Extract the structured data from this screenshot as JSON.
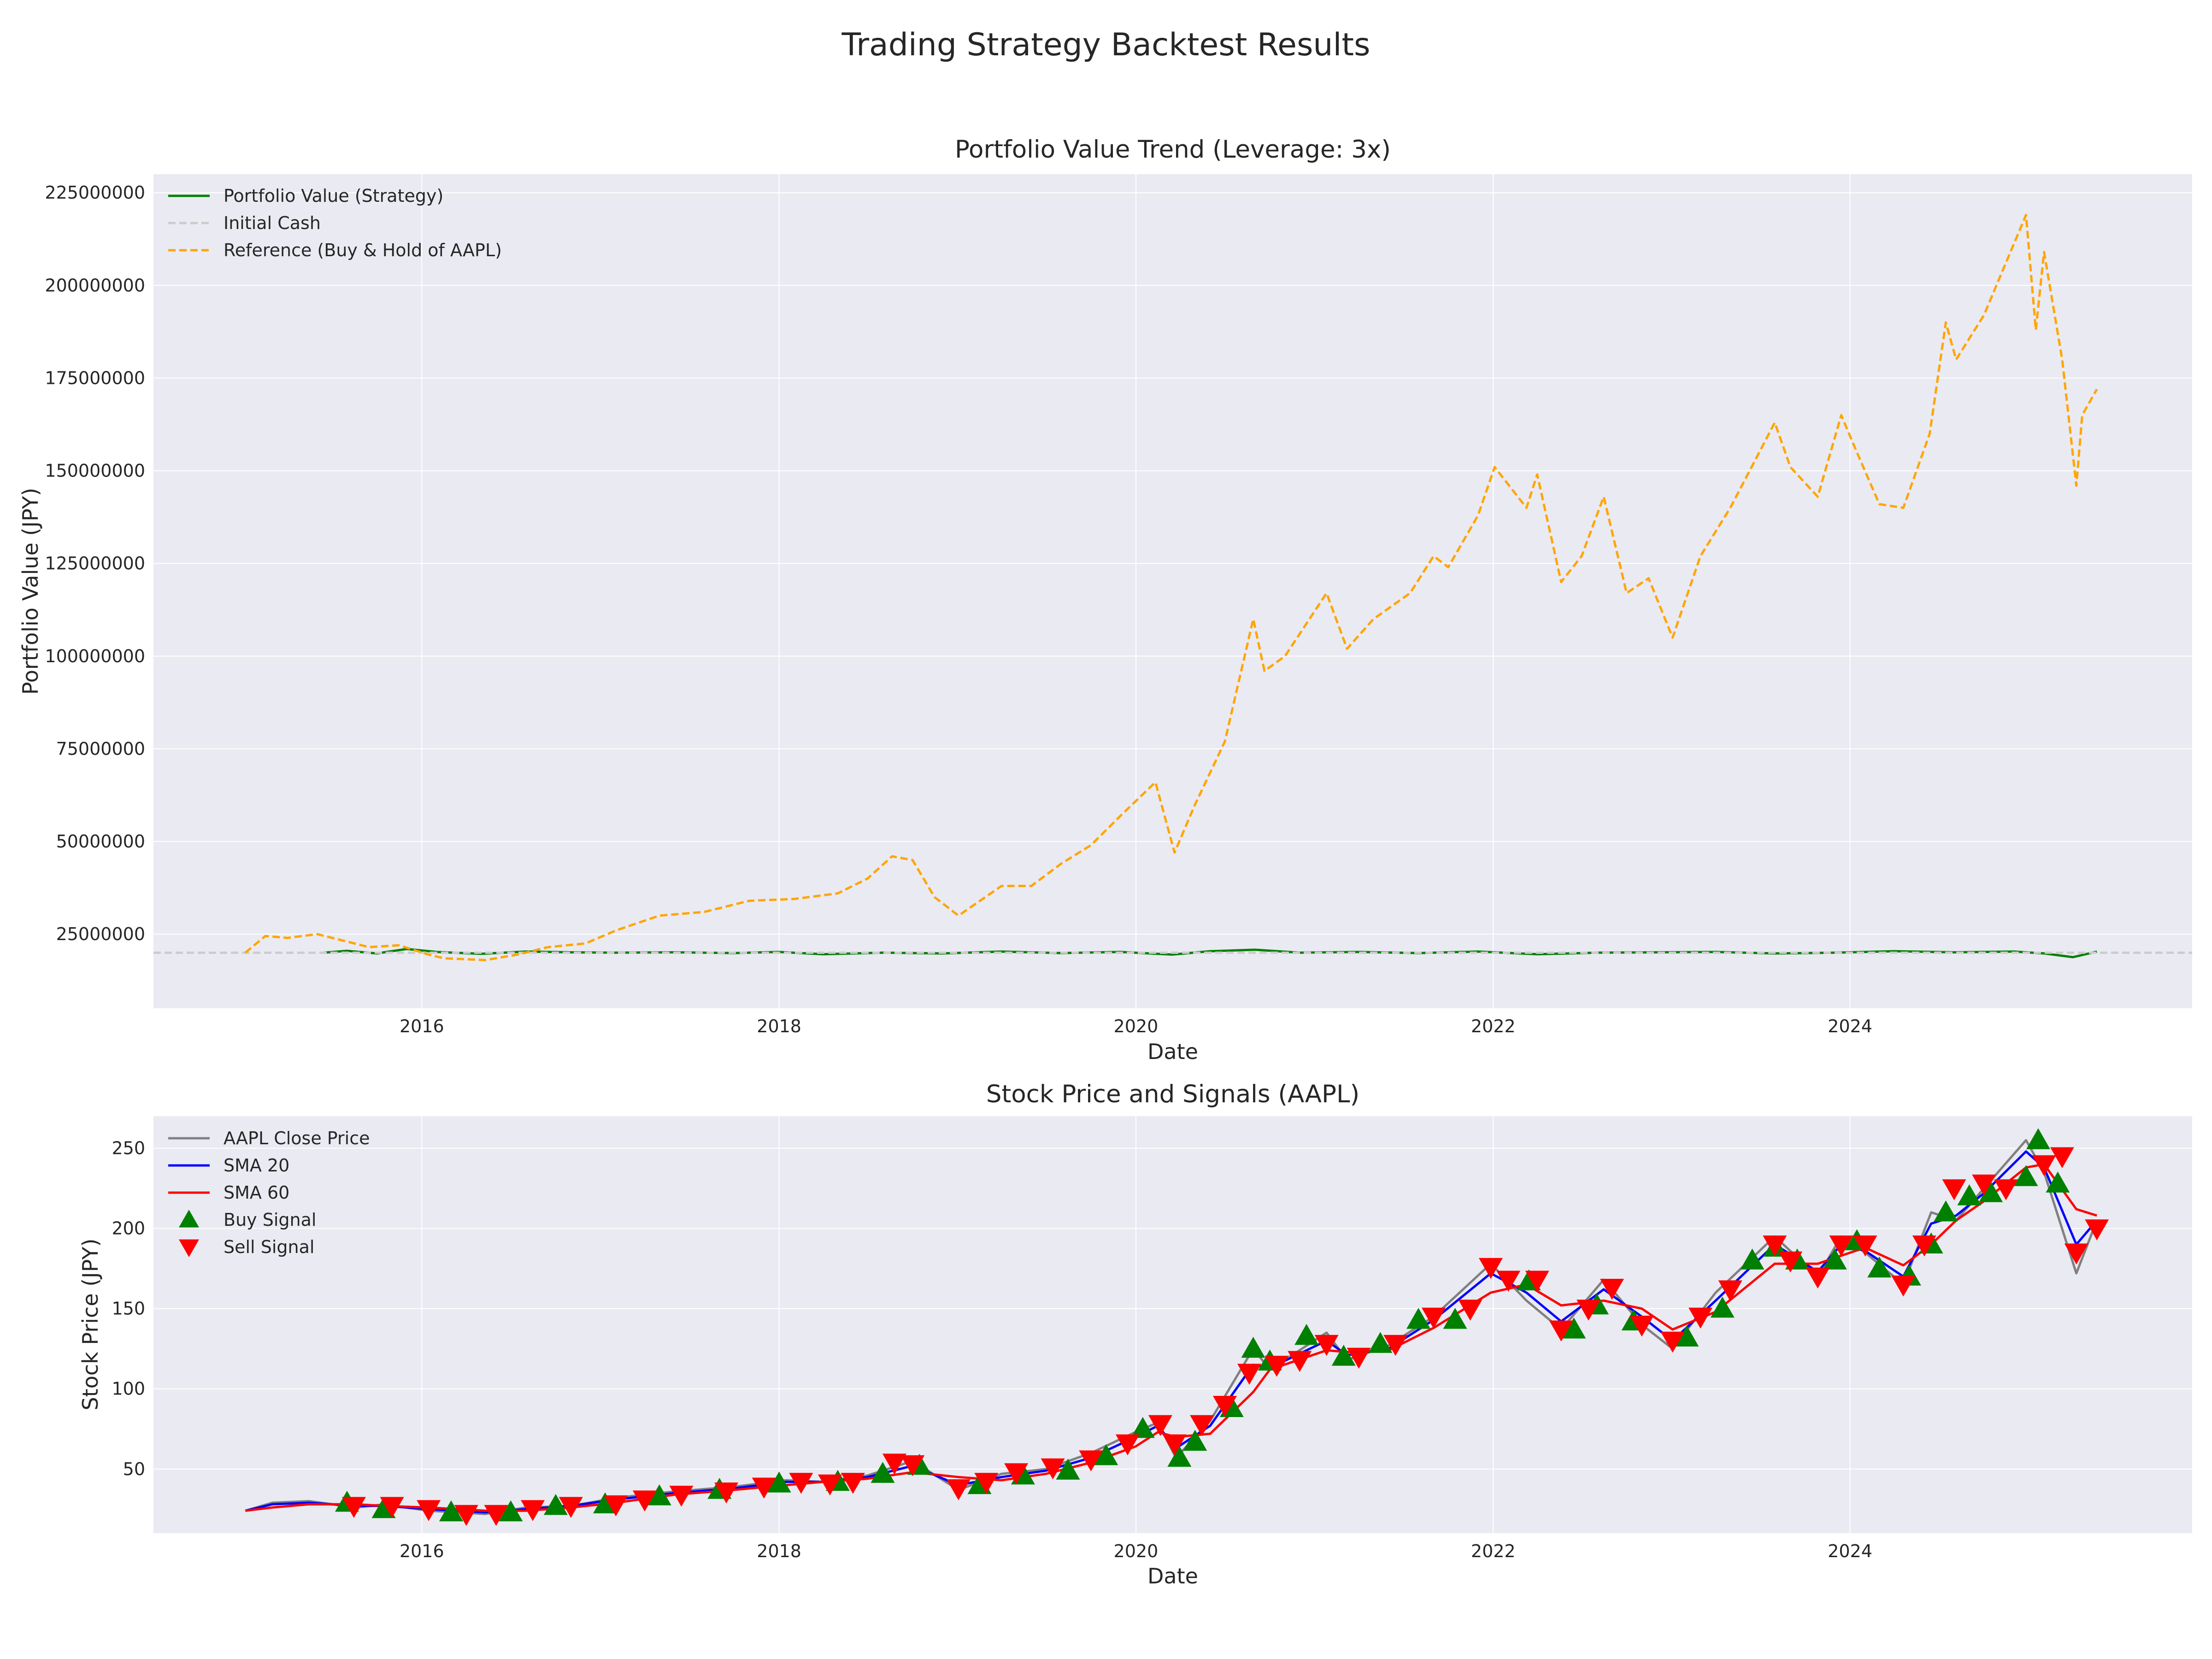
{
  "figure_title": "Trading Strategy Backtest Results",
  "chart_data": [
    {
      "type": "line",
      "title": "Portfolio Value Trend (Leverage: 3x)",
      "xlabel": "Date",
      "ylabel": "Portfolio Value (JPY)",
      "x_ticks": [
        "2016",
        "2018",
        "2020",
        "2022",
        "2024"
      ],
      "y_ticks": [
        "25000000",
        "50000000",
        "75000000",
        "100000000",
        "125000000",
        "150000000",
        "175000000",
        "200000000",
        "225000000"
      ],
      "ylim": [
        5000000,
        230000000
      ],
      "xlim": [
        "2014-07-01",
        "2025-12-01"
      ],
      "grid": true,
      "legend_position": "upper-left",
      "series": [
        {
          "name": "Portfolio Value (Strategy)",
          "color": "#008000",
          "style": "solid",
          "x": [
            "2015-06-15",
            "2015-08-01",
            "2015-10-01",
            "2015-12-01",
            "2016-02-01",
            "2016-05-01",
            "2016-08-01",
            "2016-11-01",
            "2017-02-01",
            "2017-06-01",
            "2017-10-01",
            "2018-01-01",
            "2018-04-01",
            "2018-08-01",
            "2018-12-01",
            "2019-04-01",
            "2019-08-01",
            "2019-12-01",
            "2020-03-15",
            "2020-06-01",
            "2020-09-01",
            "2020-12-01",
            "2021-04-01",
            "2021-08-01",
            "2021-12-01",
            "2022-04-01",
            "2022-08-01",
            "2022-12-01",
            "2023-04-01",
            "2023-08-01",
            "2023-12-01",
            "2024-04-01",
            "2024-08-01",
            "2024-12-01",
            "2025-02-01",
            "2025-04-01",
            "2025-05-20"
          ],
          "y": [
            20000000,
            20500000,
            19800000,
            21000000,
            20200000,
            19700000,
            20300000,
            20100000,
            20000000,
            20100000,
            19900000,
            20200000,
            19600000,
            20000000,
            19800000,
            20300000,
            19900000,
            20200000,
            19500000,
            20400000,
            20800000,
            20000000,
            20200000,
            19900000,
            20300000,
            19600000,
            20000000,
            20100000,
            20200000,
            19800000,
            20000000,
            20400000,
            20100000,
            20300000,
            19800000,
            18800000,
            20300000
          ]
        },
        {
          "name": "Initial Cash",
          "color": "#cccccc",
          "style": "dashed",
          "constant": 20000000
        },
        {
          "name": "Reference (Buy & Hold of AAPL)",
          "color": "#FFA500",
          "style": "dashed",
          "x": [
            "2015-01-05",
            "2015-02-15",
            "2015-04-01",
            "2015-06-01",
            "2015-08-01",
            "2015-09-15",
            "2015-11-15",
            "2016-01-15",
            "2016-02-15",
            "2016-05-10",
            "2016-07-15",
            "2016-09-15",
            "2016-12-01",
            "2017-02-01",
            "2017-05-01",
            "2017-08-01",
            "2017-11-01",
            "2018-02-01",
            "2018-05-01",
            "2018-07-01",
            "2018-08-20",
            "2018-10-01",
            "2018-11-15",
            "2019-01-03",
            "2019-04-01",
            "2019-06-01",
            "2019-08-01",
            "2019-10-01",
            "2019-12-01",
            "2020-02-10",
            "2020-03-20",
            "2020-05-01",
            "2020-07-01",
            "2020-08-28",
            "2020-09-20",
            "2020-11-01",
            "2021-01-25",
            "2021-03-08",
            "2021-05-01",
            "2021-07-15",
            "2021-09-01",
            "2021-10-01",
            "2021-12-01",
            "2022-01-04",
            "2022-03-10",
            "2022-04-01",
            "2022-05-20",
            "2022-07-01",
            "2022-08-15",
            "2022-10-01",
            "2022-11-15",
            "2023-01-03",
            "2023-03-01",
            "2023-05-01",
            "2023-07-31",
            "2023-09-01",
            "2023-10-27",
            "2023-12-14",
            "2024-01-15",
            "2024-03-01",
            "2024-04-19",
            "2024-06-12",
            "2024-07-15",
            "2024-08-05",
            "2024-10-01",
            "2024-12-26",
            "2025-01-15",
            "2025-02-01",
            "2025-03-10",
            "2025-04-08",
            "2025-04-20",
            "2025-05-20"
          ],
          "y": [
            20000000,
            24500000,
            24000000,
            25000000,
            23000000,
            21500000,
            22000000,
            19500000,
            18500000,
            18000000,
            19500000,
            21500000,
            22500000,
            26000000,
            30000000,
            31000000,
            34000000,
            34500000,
            36000000,
            40000000,
            46000000,
            45000000,
            35000000,
            30000000,
            38000000,
            38000000,
            44000000,
            49000000,
            57000000,
            66000000,
            47000000,
            60000000,
            77000000,
            110000000,
            96000000,
            100000000,
            117000000,
            102000000,
            110000000,
            117000000,
            127000000,
            124000000,
            138000000,
            151000000,
            140000000,
            149000000,
            120000000,
            127000000,
            143000000,
            117000000,
            121000000,
            105000000,
            127000000,
            140000000,
            163000000,
            151000000,
            143000000,
            165000000,
            155000000,
            141000000,
            140000000,
            160000000,
            190000000,
            180000000,
            192000000,
            219000000,
            188000000,
            209000000,
            180000000,
            146000000,
            165000000,
            172000000
          ]
        }
      ]
    },
    {
      "type": "line",
      "title": "Stock Price and Signals (AAPL)",
      "xlabel": "Date",
      "ylabel": "Stock Price (JPY)",
      "x_ticks": [
        "2016",
        "2018",
        "2020",
        "2022",
        "2024"
      ],
      "y_ticks": [
        "50",
        "100",
        "150",
        "200",
        "250"
      ],
      "ylim": [
        10,
        270
      ],
      "xlim": [
        "2014-07-01",
        "2025-12-01"
      ],
      "grid": true,
      "legend_position": "upper-left",
      "series": [
        {
          "name": "AAPL Close Price",
          "color": "#808080",
          "x": [
            "2015-01-05",
            "2015-03-01",
            "2015-05-15",
            "2015-08-20",
            "2015-10-15",
            "2016-01-15",
            "2016-05-10",
            "2016-08-01",
            "2016-11-01",
            "2017-02-01",
            "2017-06-01",
            "2017-10-01",
            "2018-01-15",
            "2018-04-01",
            "2018-07-01",
            "2018-10-01",
            "2019-01-03",
            "2019-04-01",
            "2019-07-01",
            "2019-10-01",
            "2019-12-31",
            "2020-02-15",
            "2020-03-23",
            "2020-06-01",
            "2020-08-28",
            "2020-10-01",
            "2021-01-25",
            "2021-03-08",
            "2021-06-01",
            "2021-09-01",
            "2021-12-27",
            "2022-03-10",
            "2022-05-20",
            "2022-08-15",
            "2022-11-01",
            "2023-01-03",
            "2023-04-01",
            "2023-07-31",
            "2023-10-27",
            "2023-12-14",
            "2024-02-01",
            "2024-04-19",
            "2024-06-15",
            "2024-08-05",
            "2024-10-01",
            "2024-12-26",
            "2025-02-01",
            "2025-04-08",
            "2025-05-20"
          ],
          "y": [
            24,
            29,
            30,
            26,
            28,
            24,
            22,
            26,
            27,
            32,
            36,
            39,
            43,
            42,
            46,
            55,
            37,
            47,
            50,
            60,
            73,
            79,
            57,
            80,
            125,
            112,
            135,
            118,
            127,
            145,
            178,
            155,
            137,
            168,
            140,
            125,
            160,
            195,
            170,
            195,
            185,
            165,
            210,
            205,
            225,
            255,
            235,
            172,
            205
          ]
        },
        {
          "name": "SMA 20",
          "color": "#0000FF",
          "x": [
            "2015-01-05",
            "2015-03-01",
            "2015-05-15",
            "2015-08-20",
            "2015-10-15",
            "2016-01-15",
            "2016-05-10",
            "2016-08-01",
            "2016-11-01",
            "2017-02-01",
            "2017-06-01",
            "2017-10-01",
            "2018-01-15",
            "2018-04-01",
            "2018-07-01",
            "2018-10-01",
            "2019-01-03",
            "2019-04-01",
            "2019-07-01",
            "2019-10-01",
            "2019-12-31",
            "2020-02-15",
            "2020-03-23",
            "2020-06-01",
            "2020-08-28",
            "2020-10-01",
            "2021-01-25",
            "2021-03-08",
            "2021-06-01",
            "2021-09-01",
            "2021-12-27",
            "2022-03-10",
            "2022-05-20",
            "2022-08-15",
            "2022-11-01",
            "2023-01-03",
            "2023-04-01",
            "2023-07-31",
            "2023-10-27",
            "2023-12-14",
            "2024-02-01",
            "2024-04-19",
            "2024-06-15",
            "2024-08-05",
            "2024-10-01",
            "2024-12-26",
            "2025-02-01",
            "2025-04-08",
            "2025-05-20"
          ],
          "y": [
            24,
            28,
            29,
            27,
            27,
            25,
            23,
            25,
            27,
            31,
            35,
            38,
            42,
            42,
            45,
            52,
            40,
            45,
            49,
            57,
            70,
            77,
            63,
            77,
            115,
            113,
            130,
            121,
            125,
            143,
            172,
            160,
            142,
            162,
            145,
            130,
            155,
            190,
            173,
            190,
            186,
            170,
            203,
            208,
            222,
            248,
            238,
            190,
            205
          ]
        },
        {
          "name": "SMA 60",
          "color": "#FF0000",
          "x": [
            "2015-01-05",
            "2015-03-01",
            "2015-05-15",
            "2015-08-20",
            "2015-10-15",
            "2016-01-15",
            "2016-05-10",
            "2016-08-01",
            "2016-11-01",
            "2017-02-01",
            "2017-06-01",
            "2017-10-01",
            "2018-01-15",
            "2018-04-01",
            "2018-07-01",
            "2018-10-01",
            "2019-01-03",
            "2019-04-01",
            "2019-07-01",
            "2019-10-01",
            "2019-12-31",
            "2020-02-15",
            "2020-03-23",
            "2020-06-01",
            "2020-08-28",
            "2020-10-01",
            "2021-01-25",
            "2021-03-08",
            "2021-06-01",
            "2021-09-01",
            "2021-12-27",
            "2022-03-10",
            "2022-05-20",
            "2022-08-15",
            "2022-11-01",
            "2023-01-03",
            "2023-04-01",
            "2023-07-31",
            "2023-10-27",
            "2023-12-14",
            "2024-02-01",
            "2024-04-19",
            "2024-06-15",
            "2024-08-05",
            "2024-10-01",
            "2024-12-26",
            "2025-02-01",
            "2025-04-08",
            "2025-05-20"
          ],
          "y": [
            24,
            26,
            28,
            28,
            27,
            26,
            24,
            24,
            26,
            29,
            34,
            37,
            40,
            42,
            44,
            48,
            45,
            43,
            47,
            54,
            64,
            73,
            70,
            72,
            98,
            112,
            124,
            123,
            124,
            138,
            160,
            165,
            152,
            155,
            150,
            137,
            148,
            178,
            178,
            183,
            188,
            177,
            190,
            205,
            217,
            238,
            240,
            212,
            208
          ]
        }
      ],
      "markers": [
        {
          "name": "Buy Signal",
          "color": "#008000",
          "shape": "triangle-up",
          "x": [
            "2015-08-01",
            "2015-10-15",
            "2016-03-01",
            "2016-07-01",
            "2016-10-01",
            "2017-01-10",
            "2017-05-01",
            "2017-09-01",
            "2018-01-01",
            "2018-05-01",
            "2018-08-01",
            "2018-10-15",
            "2019-02-15",
            "2019-05-15",
            "2019-08-15",
            "2019-11-01",
            "2020-01-15",
            "2020-03-30",
            "2020-05-01",
            "2020-07-15",
            "2020-08-28",
            "2020-10-01",
            "2020-12-15",
            "2021-03-01",
            "2021-05-15",
            "2021-08-01",
            "2021-10-15",
            "2022-03-15",
            "2022-06-15",
            "2022-08-01",
            "2022-10-15",
            "2023-02-01",
            "2023-04-15",
            "2023-06-15",
            "2023-08-01",
            "2023-09-15",
            "2023-12-01",
            "2024-01-15",
            "2024-03-01",
            "2024-05-01",
            "2024-06-15",
            "2024-07-15",
            "2024-09-01",
            "2024-10-15",
            "2024-12-26",
            "2025-01-20",
            "2025-03-01"
          ],
          "y": [
            29,
            25,
            23,
            23,
            27,
            28,
            33,
            37,
            41,
            42,
            47,
            52,
            40,
            46,
            49,
            58,
            75,
            57,
            67,
            88,
            125,
            117,
            133,
            120,
            128,
            143,
            143,
            167,
            137,
            152,
            142,
            132,
            150,
            180,
            188,
            180,
            180,
            192,
            175,
            170,
            190,
            210,
            220,
            222,
            232,
            255,
            228
          ]
        },
        {
          "name": "Sell Signal",
          "color": "#FF0000",
          "shape": "triangle-down",
          "x": [
            "2015-08-15",
            "2015-11-01",
            "2016-01-15",
            "2016-04-01",
            "2016-06-01",
            "2016-08-15",
            "2016-11-01",
            "2017-02-01",
            "2017-04-01",
            "2017-06-15",
            "2017-09-15",
            "2017-12-01",
            "2018-02-15",
            "2018-04-15",
            "2018-06-01",
            "2018-08-25",
            "2018-10-01",
            "2019-01-03",
            "2019-03-01",
            "2019-05-01",
            "2019-07-15",
            "2019-10-01",
            "2019-12-15",
            "2020-02-20",
            "2020-03-20",
            "2020-05-15",
            "2020-07-01",
            "2020-08-20",
            "2020-10-15",
            "2020-12-01",
            "2021-01-25",
            "2021-04-01",
            "2021-06-15",
            "2021-09-01",
            "2021-11-15",
            "2021-12-27",
            "2022-02-01",
            "2022-04-01",
            "2022-05-20",
            "2022-07-15",
            "2022-09-01",
            "2022-11-01",
            "2023-01-03",
            "2023-03-01",
            "2023-05-01",
            "2023-07-31",
            "2023-09-01",
            "2023-10-27",
            "2023-12-14",
            "2024-02-01",
            "2024-04-19",
            "2024-06-01",
            "2024-08-01",
            "2024-10-01",
            "2024-11-15",
            "2025-02-01",
            "2025-03-10",
            "2025-04-08",
            "2025-05-20"
          ],
          "y": [
            27,
            27,
            25,
            22,
            22,
            25,
            27,
            28,
            31,
            34,
            36,
            39,
            42,
            41,
            42,
            54,
            53,
            38,
            42,
            48,
            51,
            56,
            66,
            78,
            66,
            78,
            90,
            110,
            115,
            118,
            128,
            120,
            128,
            145,
            150,
            176,
            168,
            168,
            137,
            150,
            163,
            140,
            130,
            145,
            162,
            190,
            180,
            170,
            190,
            190,
            165,
            190,
            225,
            228,
            225,
            240,
            245,
            185,
            200
          ]
        }
      ]
    }
  ]
}
